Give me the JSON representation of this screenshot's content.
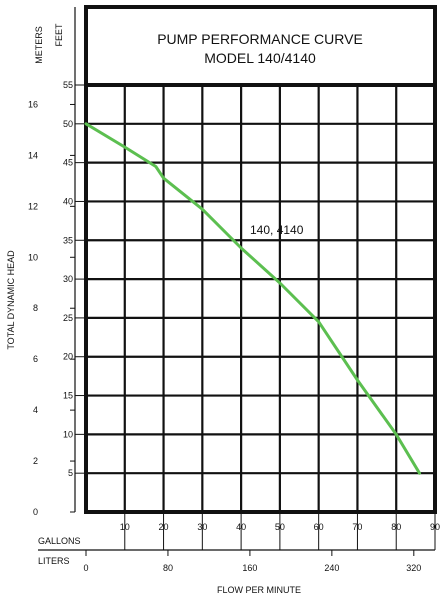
{
  "chart_data": {
    "type": "line",
    "title_line1": "PUMP PERFORMANCE CURVE",
    "title_line2": "MODEL 140/4140",
    "xlabel": "FLOW PER MINUTE",
    "ylabel": "TOTAL DYNAMIC HEAD",
    "y_left_unit": "METERS",
    "y_right_unit": "FEET",
    "x_top_unit": "GALLONS",
    "x_bottom_unit": "LITERS",
    "xlim_gallons": [
      0,
      90
    ],
    "ylim_feet": [
      0,
      55
    ],
    "grid": true,
    "feet_ticks": [
      "5",
      "10",
      "15",
      "20",
      "25",
      "30",
      "35",
      "40",
      "45",
      "50",
      "55"
    ],
    "meters_ticks": [
      "0",
      "2",
      "4",
      "6",
      "8",
      "10",
      "12",
      "14",
      "16"
    ],
    "gallons_ticks": [
      "10",
      "20",
      "30",
      "40",
      "50",
      "60",
      "70",
      "80",
      "90"
    ],
    "liters_ticks": [
      "0",
      "80",
      "160",
      "240",
      "320"
    ],
    "series": [
      {
        "name": "140, 4140",
        "color": "#5cbf50",
        "x": [
          0,
          10,
          18,
          20,
          30,
          40,
          50,
          60,
          70,
          80,
          86
        ],
        "y": [
          50,
          47,
          44.5,
          43,
          39,
          34,
          29.5,
          24.5,
          17,
          10,
          5
        ]
      }
    ]
  }
}
